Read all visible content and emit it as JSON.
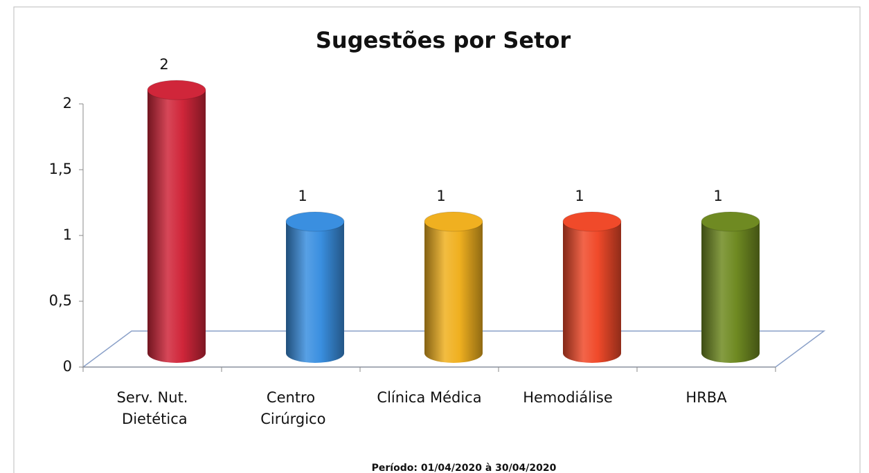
{
  "chart_data": {
    "type": "bar3d",
    "title": "Sugestões por Setor",
    "categories": [
      "Serv. Nut. Dietética",
      "Centro Cirúrgico",
      "Clínica Médica",
      "Hemodiálise",
      "HRBA"
    ],
    "values": [
      2,
      1,
      1,
      1,
      1
    ],
    "colors": [
      "#d0263a",
      "#3a8fe0",
      "#f0b020",
      "#f04a2a",
      "#6f8a22"
    ],
    "ylim": [
      0,
      2
    ],
    "yticks": [
      0,
      {
        "value": 0.5,
        "label": "0,5"
      },
      1,
      {
        "value": 1.5,
        "label": "1,5"
      },
      2
    ],
    "annotation": "Período: 01/04/2020 à 30/04/2020"
  }
}
